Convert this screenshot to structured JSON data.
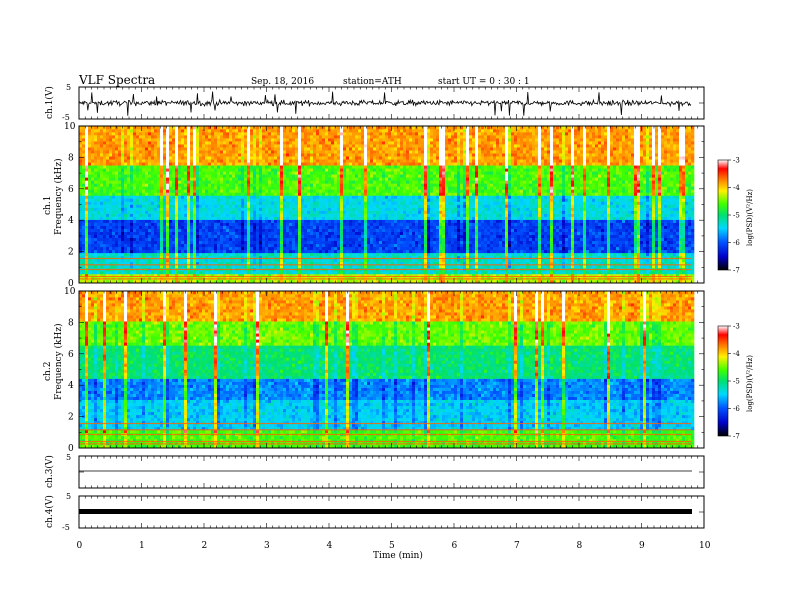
{
  "header": {
    "title": "VLF  Spectra",
    "date": "Sep. 18, 2016",
    "station": "station=ATH",
    "start": "start  UT  =    0  : 30 : 1"
  },
  "chart_data": [
    {
      "type": "line",
      "name": "ch1-waveform",
      "ylabel": "ch.1(V)",
      "ylim": [
        -5,
        5
      ],
      "yticks": [
        5,
        -5
      ],
      "x_range_min": [
        0,
        9.8
      ],
      "description_level": "noisy waveform oscillating around 0 V with amplitude of roughly 1 to 2 V and occasional spikes"
    },
    {
      "type": "heatmap",
      "name": "ch1-spectrogram",
      "ylabel": "Frequency (kHz)",
      "channel_label": "ch.1",
      "ylim": [
        0,
        10
      ],
      "yticks": [
        "0",
        "2",
        "4",
        "6",
        "8",
        "10"
      ],
      "colorbar": {
        "label": "log(PSD)(V²/Hz)",
        "range": [
          -7,
          -3
        ],
        "ticks": [
          "-3",
          "-4",
          "-5",
          "-6",
          "-7"
        ]
      },
      "bands_logPSD": [
        {
          "f": [
            0,
            0.5
          ],
          "level": -4.3
        },
        {
          "f": [
            0.5,
            2
          ],
          "level": -5.3
        },
        {
          "f": [
            2,
            4
          ],
          "level": -6.1
        },
        {
          "f": [
            4,
            5.5
          ],
          "level": -5.4
        },
        {
          "f": [
            5.5,
            7.5
          ],
          "level": -4.6
        },
        {
          "f": [
            7.5,
            10
          ],
          "level": -3.8
        }
      ]
    },
    {
      "type": "heatmap",
      "name": "ch2-spectrogram",
      "ylabel": "Frequency (kHz)",
      "channel_label": "ch.2",
      "ylim": [
        0,
        10
      ],
      "yticks": [
        "0",
        "2",
        "4",
        "6",
        "8",
        "10"
      ],
      "colorbar": {
        "label": "log(PSD)(V²/Hz)",
        "range": [
          -7,
          -3
        ],
        "ticks": [
          "-3",
          "-4",
          "-5",
          "-6",
          "-7"
        ]
      },
      "bands_logPSD": [
        {
          "f": [
            0,
            1.2
          ],
          "level": -4.6
        },
        {
          "f": [
            1.2,
            3
          ],
          "level": -5.5
        },
        {
          "f": [
            3,
            4.5
          ],
          "level": -5.8
        },
        {
          "f": [
            4.5,
            6.5
          ],
          "level": -5.0
        },
        {
          "f": [
            6.5,
            8
          ],
          "level": -4.5
        },
        {
          "f": [
            8,
            10
          ],
          "level": -3.8
        }
      ]
    },
    {
      "type": "line",
      "name": "ch3-waveform",
      "ylabel": "ch.3(V)",
      "ylim": [
        -5,
        5
      ],
      "yticks": [
        5
      ],
      "level": 0
    },
    {
      "type": "line",
      "name": "ch4-waveform",
      "ylabel": "ch.4(V)",
      "ylim": [
        -5,
        5
      ],
      "yticks": [
        5,
        -5
      ],
      "level": 0
    }
  ],
  "xaxis": {
    "label": "Time  (min)",
    "range": [
      0,
      10
    ],
    "ticks": [
      "0",
      "1",
      "2",
      "3",
      "4",
      "5",
      "6",
      "7",
      "8",
      "9",
      "10"
    ]
  }
}
